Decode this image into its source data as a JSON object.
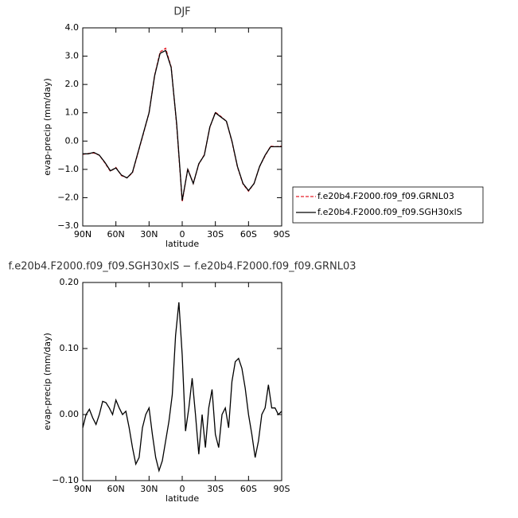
{
  "chart_data": [
    {
      "type": "line",
      "title": "DJF",
      "xlabel": "latitude",
      "ylabel": "evap-precip (mm/day)",
      "x": [
        90,
        85,
        80,
        75,
        70,
        65,
        60,
        55,
        50,
        45,
        40,
        35,
        30,
        25,
        20,
        15,
        10,
        5,
        0,
        -5,
        -10,
        -15,
        -20,
        -25,
        -30,
        -35,
        -40,
        -45,
        -50,
        -55,
        -60,
        -65,
        -70,
        -75,
        -80,
        -85,
        -90
      ],
      "series": [
        {
          "name": "f.e20b4.F2000.f09_f09.GRNL03",
          "color": "#e8202a",
          "line_style": "dashed",
          "values": [
            -0.47,
            -0.44,
            -0.42,
            -0.5,
            -0.77,
            -1.07,
            -0.93,
            -1.22,
            -1.3,
            -1.12,
            -0.42,
            0.28,
            1.0,
            2.32,
            3.15,
            3.28,
            2.62,
            0.55,
            -2.15,
            -0.98,
            -1.5,
            -0.82,
            -0.48,
            0.48,
            1.02,
            0.87,
            0.7,
            -0.02,
            -0.92,
            -1.52,
            -1.77,
            -1.5,
            -0.9,
            -0.52,
            -0.18,
            -0.2,
            -0.18
          ]
        },
        {
          "name": "f.e20b4.F2000.f09_f09.SGH30xlS",
          "color": "#000000",
          "line_style": "solid",
          "values": [
            -0.45,
            -0.45,
            -0.4,
            -0.5,
            -0.75,
            -1.05,
            -0.95,
            -1.2,
            -1.3,
            -1.1,
            -0.4,
            0.3,
            1.0,
            2.3,
            3.1,
            3.2,
            2.6,
            0.6,
            -2.1,
            -1.0,
            -1.5,
            -0.8,
            -0.5,
            0.5,
            1.0,
            0.85,
            0.7,
            0.0,
            -0.9,
            -1.5,
            -1.75,
            -1.5,
            -0.9,
            -0.5,
            -0.2,
            -0.2,
            -0.2
          ]
        }
      ],
      "xlim": [
        90,
        -90
      ],
      "xticks": [
        {
          "value": 90,
          "label": "90N"
        },
        {
          "value": 60,
          "label": "60N"
        },
        {
          "value": 30,
          "label": "30N"
        },
        0,
        {
          "value": -30,
          "label": "30S"
        },
        {
          "value": -60,
          "label": "60S"
        },
        {
          "value": -90,
          "label": "90S"
        }
      ],
      "ylim": [
        -3,
        4
      ],
      "yticks": [
        {
          "value": -3,
          "label": "−3.0"
        },
        {
          "value": -2,
          "label": "−2.0"
        },
        {
          "value": -1,
          "label": "−1.0"
        },
        {
          "value": 0,
          "label": "0.0"
        },
        {
          "value": 1,
          "label": "1.0"
        },
        {
          "value": 2,
          "label": "2.0"
        },
        {
          "value": 3,
          "label": "3.0"
        },
        {
          "value": 4,
          "label": "4.0"
        }
      ],
      "legend": "right"
    },
    {
      "type": "line",
      "title": "f.e20b4.F2000.f09_f09.SGH30xlS − f.e20b4.F2000.f09_f09.GRNL03",
      "xlabel": "latitude",
      "ylabel": "evap-precip (mm/day)",
      "x": [
        90,
        87,
        84,
        81,
        78,
        75,
        72,
        69,
        66,
        63,
        60,
        57,
        54,
        51,
        48,
        45,
        42,
        39,
        36,
        33,
        30,
        27,
        24,
        21,
        18,
        15,
        12,
        9,
        6,
        3,
        0,
        -3,
        -6,
        -9,
        -12,
        -15,
        -18,
        -21,
        -24,
        -27,
        -30,
        -33,
        -36,
        -39,
        -42,
        -45,
        -48,
        -51,
        -54,
        -57,
        -60,
        -63,
        -66,
        -69,
        -72,
        -75,
        -78,
        -81,
        -84,
        -87,
        -90
      ],
      "series": [
        {
          "color": "#000000",
          "line_style": "solid",
          "values": [
            -0.02,
            0.0,
            0.008,
            -0.005,
            -0.015,
            0.0,
            0.02,
            0.018,
            0.01,
            0.0,
            0.022,
            0.01,
            0.0,
            0.005,
            -0.02,
            -0.05,
            -0.075,
            -0.065,
            -0.02,
            0.0,
            0.01,
            -0.03,
            -0.065,
            -0.085,
            -0.07,
            -0.04,
            -0.01,
            0.03,
            0.12,
            0.17,
            0.09,
            -0.025,
            0.01,
            0.055,
            0.0,
            -0.06,
            0.0,
            -0.05,
            0.01,
            0.038,
            -0.03,
            -0.05,
            0.0,
            0.01,
            -0.02,
            0.05,
            0.08,
            0.085,
            0.07,
            0.04,
            0.0,
            -0.03,
            -0.065,
            -0.04,
            0.0,
            0.01,
            0.045,
            0.01,
            0.01,
            0.0,
            0.005
          ]
        }
      ],
      "xlim": [
        90,
        -90
      ],
      "xticks": [
        {
          "value": 90,
          "label": "90N"
        },
        {
          "value": 60,
          "label": "60N"
        },
        {
          "value": 30,
          "label": "30N"
        },
        0,
        {
          "value": -30,
          "label": "30S"
        },
        {
          "value": -60,
          "label": "60S"
        },
        {
          "value": -90,
          "label": "90S"
        }
      ],
      "ylim": [
        -0.1,
        0.2
      ],
      "yticks": [
        {
          "value": -0.1,
          "label": "−0.10"
        },
        {
          "value": 0,
          "label": "0.00"
        },
        {
          "value": 0.1,
          "label": "0.10"
        },
        {
          "value": 0.2,
          "label": "0.20"
        }
      ]
    }
  ]
}
